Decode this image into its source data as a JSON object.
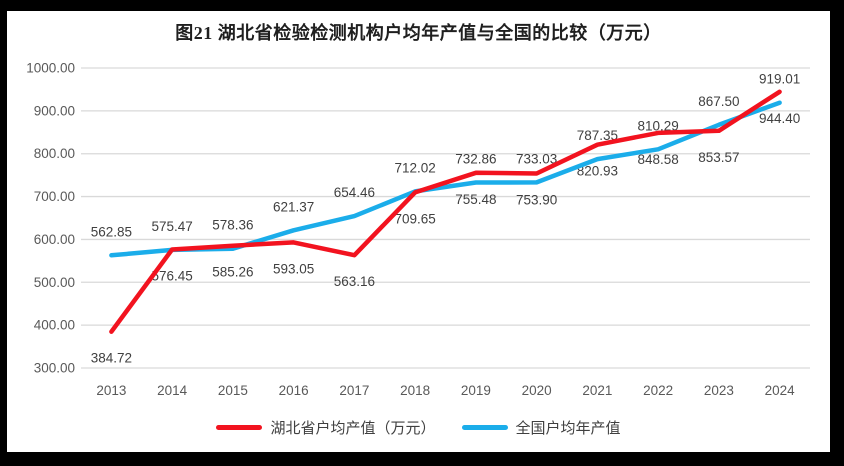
{
  "chart_data": {
    "type": "line",
    "title": "图21 湖北省检验检测机构户均年产值与全国的比较（万元）",
    "categories": [
      "2013",
      "2014",
      "2015",
      "2016",
      "2017",
      "2018",
      "2019",
      "2020",
      "2021",
      "2022",
      "2023",
      "2024"
    ],
    "series": [
      {
        "name": "湖北省户均产值（万元）",
        "color": "#f2131f",
        "label_position": "below",
        "values": [
          384.72,
          576.45,
          585.26,
          593.05,
          563.16,
          709.65,
          755.48,
          753.9,
          820.93,
          848.58,
          853.57,
          944.4
        ]
      },
      {
        "name": "全国户均年产值",
        "color": "#1badea",
        "label_position": "above",
        "values": [
          562.85,
          575.47,
          578.36,
          621.37,
          654.46,
          712.02,
          732.86,
          733.03,
          787.35,
          810.29,
          867.5,
          919.01
        ]
      }
    ],
    "ylim": [
      300,
      1000
    ],
    "ytick_step": 100,
    "ytick_labels": [
      "300.00",
      "400.00",
      "500.00",
      "600.00",
      "700.00",
      "800.00",
      "900.00",
      "1000.00"
    ],
    "label_decimals": 2,
    "grid": true,
    "legend_position": "bottom"
  },
  "palette": {
    "frame": "#000000",
    "background": "#ffffff",
    "gridline": "#d9d9d9",
    "axis_text": "#595959",
    "data_label_text": "#404040",
    "title_text": "#1f1f1f",
    "legend_text": "#404040"
  }
}
